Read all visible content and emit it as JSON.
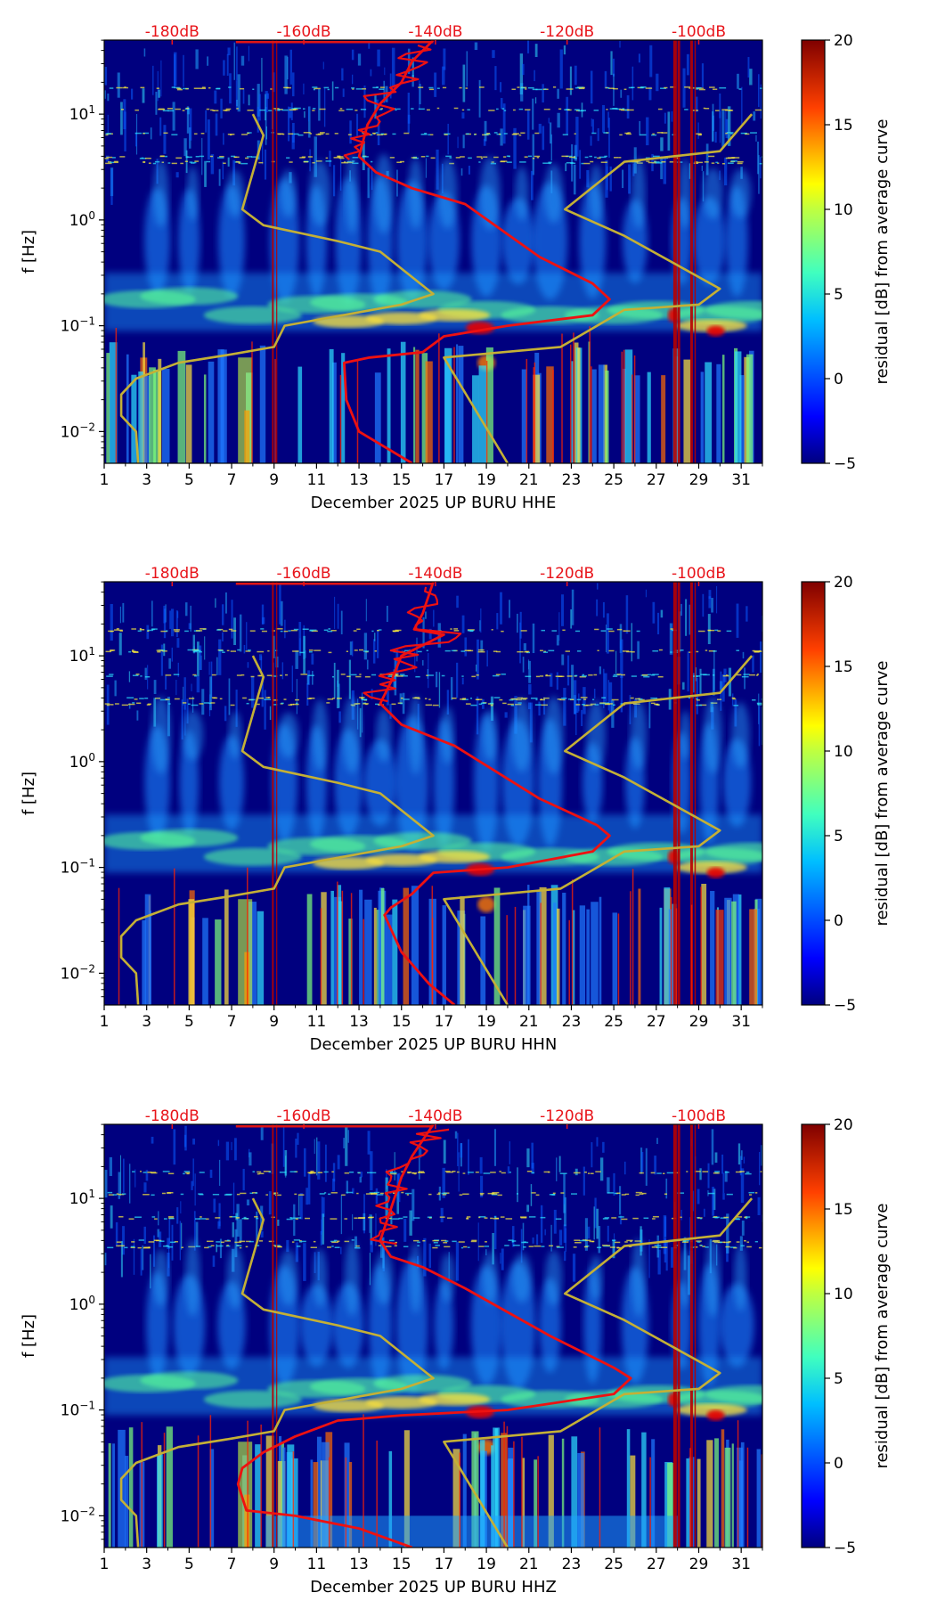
{
  "chart_data": [
    {
      "type": "heatmap",
      "component": "HHE",
      "xlabel": "December 2025 UP BURU  HHE",
      "ylabel": "f [Hz]",
      "colorbar_label": "residual [dB] from average curve",
      "colorbar_ticks": [
        "20",
        "15",
        "10",
        "5",
        "0",
        "−5"
      ],
      "x_ticks": [
        "1",
        "3",
        "5",
        "7",
        "9",
        "11",
        "13",
        "15",
        "17",
        "19",
        "21",
        "23",
        "25",
        "27",
        "29",
        "31"
      ],
      "y_ticks": [
        {
          "base": "10",
          "exp": "1"
        },
        {
          "base": "10",
          "exp": "0"
        },
        {
          "base": "10",
          "exp": "−1"
        },
        {
          "base": "10",
          "exp": "−2"
        }
      ],
      "db_ticks": [
        "-180dB",
        "-160dB",
        "-140dB",
        "-120dB",
        "-100dB"
      ],
      "xlim": [
        1,
        32
      ],
      "ylim_log10": [
        -2.3,
        1.7
      ],
      "red_curve": [
        [
          16.5,
          1.7
        ],
        [
          15.5,
          1.5
        ],
        [
          15,
          1.3
        ],
        [
          14,
          1.1
        ],
        [
          13.4,
          0.9
        ],
        [
          13,
          0.6
        ],
        [
          13.8,
          0.45
        ],
        [
          15.5,
          0.3
        ],
        [
          18,
          0.15
        ],
        [
          21.5,
          -0.35
        ],
        [
          24,
          -0.6
        ],
        [
          24.8,
          -0.75
        ],
        [
          24,
          -0.9
        ],
        [
          20,
          -1.0
        ],
        [
          17,
          -1.1
        ],
        [
          16,
          -1.25
        ],
        [
          13.5,
          -1.3
        ],
        [
          12.3,
          -1.35
        ],
        [
          12.4,
          -1.7
        ],
        [
          13,
          -2.0
        ],
        [
          15.5,
          -2.3
        ]
      ],
      "olive_curve_left": [
        [
          8,
          1.0
        ],
        [
          8.5,
          0.8
        ],
        [
          7.5,
          0.1
        ],
        [
          8.5,
          -0.05
        ],
        [
          12,
          -0.2
        ],
        [
          14,
          -0.3
        ],
        [
          16.5,
          -0.7
        ],
        [
          15,
          -0.8
        ],
        [
          9.5,
          -1.0
        ],
        [
          9,
          -1.2
        ],
        [
          7,
          -1.27
        ],
        [
          4.5,
          -1.35
        ],
        [
          2.5,
          -1.5
        ],
        [
          1.8,
          -1.65
        ],
        [
          1.8,
          -1.85
        ],
        [
          2.5,
          -2.0
        ],
        [
          2.6,
          -2.3
        ]
      ],
      "olive_curve_right": [
        [
          31.5,
          1.0
        ],
        [
          30,
          0.65
        ],
        [
          25.5,
          0.55
        ],
        [
          22.7,
          0.1
        ],
        [
          25.5,
          -0.15
        ],
        [
          30,
          -0.65
        ],
        [
          29,
          -0.8
        ],
        [
          25.5,
          -0.85
        ],
        [
          22.5,
          -1.2
        ],
        [
          17,
          -1.3
        ],
        [
          20,
          -2.3
        ]
      ]
    },
    {
      "type": "heatmap",
      "component": "HHN",
      "xlabel": "December 2025 UP BURU  HHN",
      "ylabel": "f [Hz]",
      "colorbar_label": "residual [dB] from average curve",
      "colorbar_ticks": [
        "20",
        "15",
        "10",
        "5",
        "0",
        "−5"
      ],
      "x_ticks": [
        "1",
        "3",
        "5",
        "7",
        "9",
        "11",
        "13",
        "15",
        "17",
        "19",
        "21",
        "23",
        "25",
        "27",
        "29",
        "31"
      ],
      "y_ticks": [
        {
          "base": "10",
          "exp": "1"
        },
        {
          "base": "10",
          "exp": "0"
        },
        {
          "base": "10",
          "exp": "−1"
        },
        {
          "base": "10",
          "exp": "−2"
        }
      ],
      "db_ticks": [
        "-180dB",
        "-160dB",
        "-140dB",
        "-120dB",
        "-100dB"
      ],
      "xlim": [
        1,
        32
      ],
      "ylim_log10": [
        -2.3,
        1.7
      ],
      "red_curve": [
        [
          16.5,
          1.7
        ],
        [
          16,
          1.4
        ],
        [
          15.6,
          1.25
        ],
        [
          17,
          1.2
        ],
        [
          15,
          1.0
        ],
        [
          14.5,
          0.75
        ],
        [
          14,
          0.55
        ],
        [
          15,
          0.35
        ],
        [
          17.5,
          0.15
        ],
        [
          21.5,
          -0.35
        ],
        [
          24.2,
          -0.6
        ],
        [
          24.8,
          -0.7
        ],
        [
          24,
          -0.85
        ],
        [
          20,
          -1.0
        ],
        [
          16.5,
          -1.05
        ],
        [
          15.5,
          -1.25
        ],
        [
          14.5,
          -1.38
        ],
        [
          14.2,
          -1.45
        ],
        [
          15,
          -1.8
        ],
        [
          16.3,
          -2.1
        ],
        [
          17.5,
          -2.3
        ]
      ],
      "olive_curve_left": [
        [
          8,
          1.0
        ],
        [
          8.5,
          0.8
        ],
        [
          7.5,
          0.1
        ],
        [
          8.5,
          -0.05
        ],
        [
          12,
          -0.2
        ],
        [
          14,
          -0.3
        ],
        [
          16.5,
          -0.7
        ],
        [
          15,
          -0.8
        ],
        [
          9.5,
          -1.0
        ],
        [
          9,
          -1.2
        ],
        [
          7,
          -1.27
        ],
        [
          4.5,
          -1.35
        ],
        [
          2.5,
          -1.5
        ],
        [
          1.8,
          -1.65
        ],
        [
          1.8,
          -1.85
        ],
        [
          2.5,
          -2.0
        ],
        [
          2.6,
          -2.3
        ]
      ],
      "olive_curve_right": [
        [
          31.5,
          1.0
        ],
        [
          30,
          0.65
        ],
        [
          25.5,
          0.55
        ],
        [
          22.7,
          0.1
        ],
        [
          25.5,
          -0.15
        ],
        [
          30,
          -0.65
        ],
        [
          29,
          -0.8
        ],
        [
          25.5,
          -0.85
        ],
        [
          22.5,
          -1.2
        ],
        [
          17,
          -1.3
        ],
        [
          20,
          -2.3
        ]
      ]
    },
    {
      "type": "heatmap",
      "component": "HHZ",
      "xlabel": "December 2025 UP BURU  HHZ",
      "ylabel": "f [Hz]",
      "colorbar_label": "residual [dB] from average curve",
      "colorbar_ticks": [
        "20",
        "15",
        "10",
        "5",
        "0",
        "−5"
      ],
      "x_ticks": [
        "1",
        "3",
        "5",
        "7",
        "9",
        "11",
        "13",
        "15",
        "17",
        "19",
        "21",
        "23",
        "25",
        "27",
        "29",
        "31"
      ],
      "y_ticks": [
        {
          "base": "10",
          "exp": "1"
        },
        {
          "base": "10",
          "exp": "0"
        },
        {
          "base": "10",
          "exp": "−1"
        },
        {
          "base": "10",
          "exp": "−2"
        }
      ],
      "db_ticks": [
        "-180dB",
        "-160dB",
        "-140dB",
        "-120dB",
        "-100dB"
      ],
      "xlim": [
        1,
        32
      ],
      "ylim_log10": [
        -2.3,
        1.7
      ],
      "red_curve": [
        [
          16.5,
          1.7
        ],
        [
          15.5,
          1.4
        ],
        [
          15,
          1.2
        ],
        [
          14.5,
          0.9
        ],
        [
          14,
          0.6
        ],
        [
          14.5,
          0.45
        ],
        [
          16,
          0.35
        ],
        [
          18,
          0.15
        ],
        [
          22,
          -0.3
        ],
        [
          25,
          -0.6
        ],
        [
          25.8,
          -0.7
        ],
        [
          25,
          -0.85
        ],
        [
          20,
          -1.0
        ],
        [
          15,
          -1.05
        ],
        [
          12,
          -1.1
        ],
        [
          10,
          -1.25
        ],
        [
          8.5,
          -1.4
        ],
        [
          7.5,
          -1.55
        ],
        [
          7.3,
          -1.7
        ],
        [
          7.7,
          -1.95
        ],
        [
          10,
          -2.0
        ],
        [
          13,
          -2.12
        ],
        [
          15.5,
          -2.3
        ]
      ],
      "olive_curve_left": [
        [
          8,
          1.0
        ],
        [
          8.5,
          0.8
        ],
        [
          7.5,
          0.1
        ],
        [
          8.5,
          -0.05
        ],
        [
          12,
          -0.2
        ],
        [
          14,
          -0.3
        ],
        [
          16.5,
          -0.7
        ],
        [
          15,
          -0.8
        ],
        [
          9.5,
          -1.0
        ],
        [
          9,
          -1.2
        ],
        [
          7,
          -1.27
        ],
        [
          4.5,
          -1.35
        ],
        [
          2.5,
          -1.5
        ],
        [
          1.8,
          -1.65
        ],
        [
          1.8,
          -1.85
        ],
        [
          2.5,
          -2.0
        ],
        [
          2.6,
          -2.3
        ]
      ],
      "olive_curve_right": [
        [
          31.5,
          1.0
        ],
        [
          30,
          0.65
        ],
        [
          25.5,
          0.55
        ],
        [
          22.7,
          0.1
        ],
        [
          25.5,
          -0.15
        ],
        [
          30,
          -0.65
        ],
        [
          29,
          -0.8
        ],
        [
          25.5,
          -0.85
        ],
        [
          22.5,
          -1.2
        ],
        [
          17,
          -1.3
        ],
        [
          20,
          -2.3
        ]
      ]
    }
  ],
  "colors": {
    "background": "#00007f",
    "red_curve": "#ee1111",
    "olive_curve": "#c4b036",
    "db_tick": "#e8141a",
    "axis": "#000000",
    "colormap": [
      "#00007f",
      "#0000ff",
      "#007fff",
      "#00ffff",
      "#7fff7f",
      "#ffff00",
      "#ff7f00",
      "#ff0000",
      "#7f0000"
    ]
  }
}
